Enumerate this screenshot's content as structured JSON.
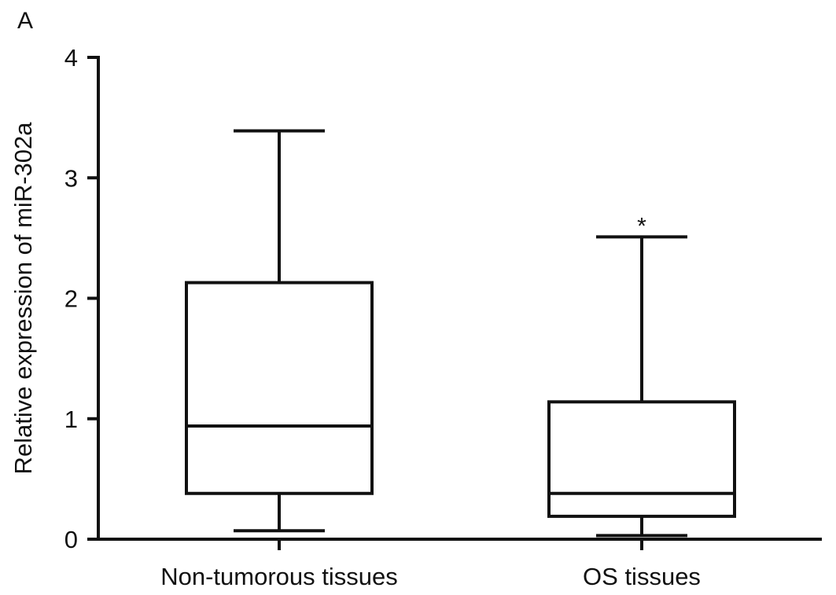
{
  "panel_label": "A",
  "annotation": "*",
  "chart_data": {
    "type": "boxplot",
    "ylabel": "Relative expression of miR-302a",
    "ylim": [
      0,
      4
    ],
    "yticks": [
      0,
      1,
      2,
      3,
      4
    ],
    "categories": [
      "Non-tumorous tissues",
      "OS tissues"
    ],
    "boxes": [
      {
        "category": "Non-tumorous tissues",
        "min": 0.07,
        "q1": 0.38,
        "median": 0.94,
        "q3": 2.13,
        "max": 3.39
      },
      {
        "category": "OS tissues",
        "min": 0.03,
        "q1": 0.19,
        "median": 0.38,
        "q3": 1.14,
        "max": 2.51,
        "annotation": "*"
      }
    ],
    "grid": false
  }
}
